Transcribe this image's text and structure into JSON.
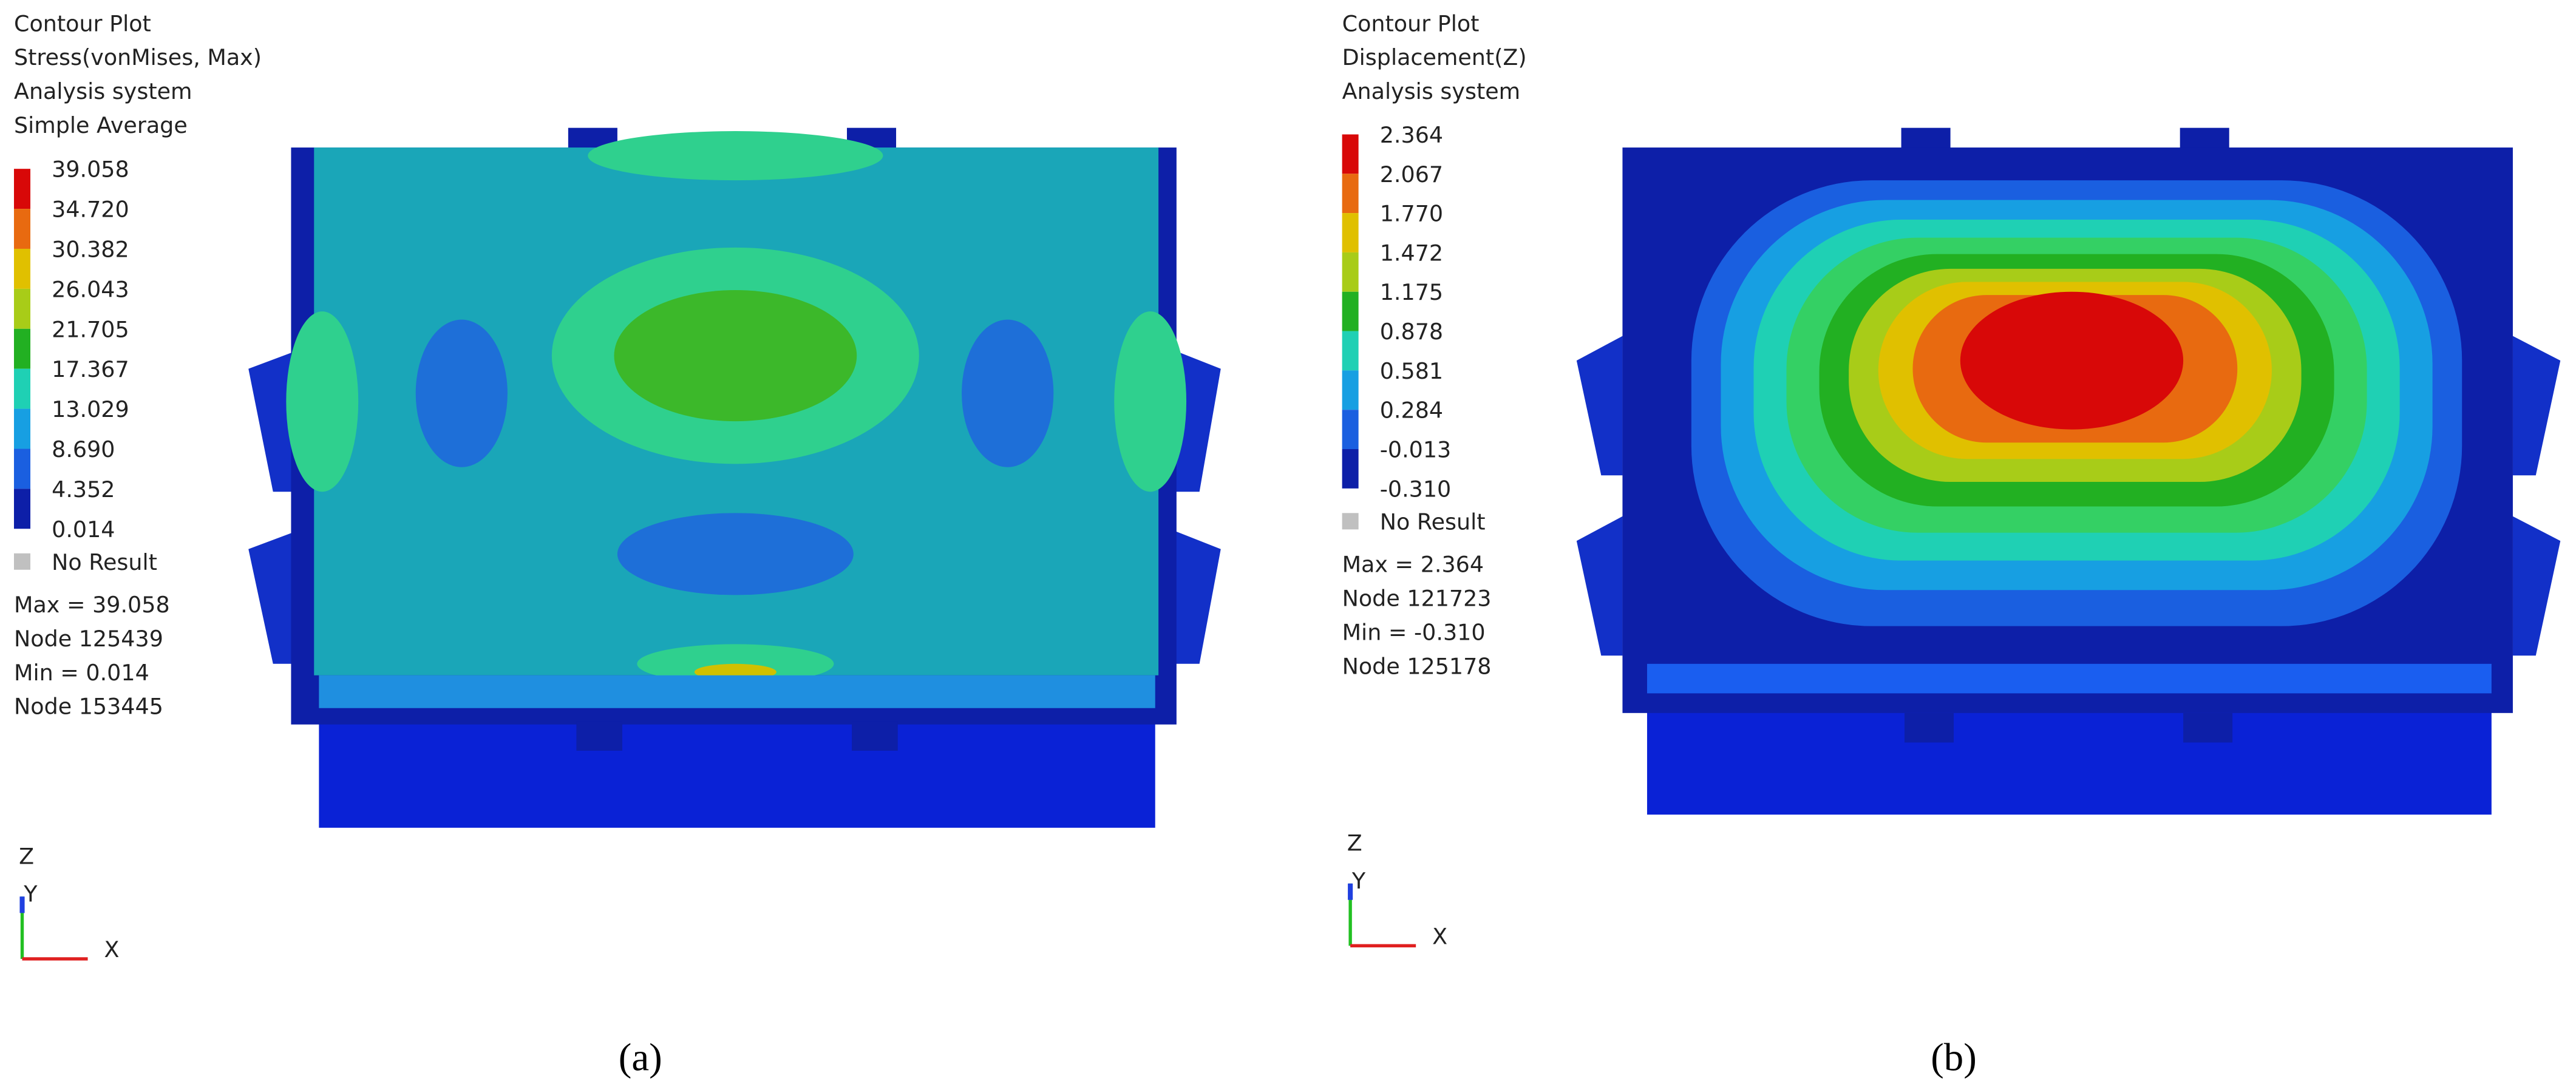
{
  "panels": [
    {
      "header": [
        "Contour Plot",
        "Stress(vonMises, Max)",
        "Analysis system",
        "Simple Average"
      ],
      "legend": [
        "39.058",
        "34.720",
        "30.382",
        "26.043",
        "21.705",
        "17.367",
        "13.029",
        "8.690",
        "4.352",
        "0.014"
      ],
      "no_result": "No Result",
      "stats": [
        "Max = 39.058",
        "Node 125439",
        "Min = 0.014",
        "Node 153445"
      ],
      "axes": [
        "Z",
        "Y",
        "X"
      ],
      "caption": "(a)"
    },
    {
      "header": [
        "Contour Plot",
        "Displacement(Z)",
        "Analysis system"
      ],
      "legend": [
        "2.364",
        "2.067",
        "1.770",
        "1.472",
        "1.175",
        "0.878",
        "0.581",
        "0.284",
        "-0.013",
        "-0.310"
      ],
      "no_result": "No Result",
      "stats": [
        "Max = 2.364",
        "Node 121723",
        "Min = -0.310",
        "Node 125178"
      ],
      "axes": [
        "Z",
        "Y",
        "X"
      ],
      "caption": "(b)"
    }
  ]
}
